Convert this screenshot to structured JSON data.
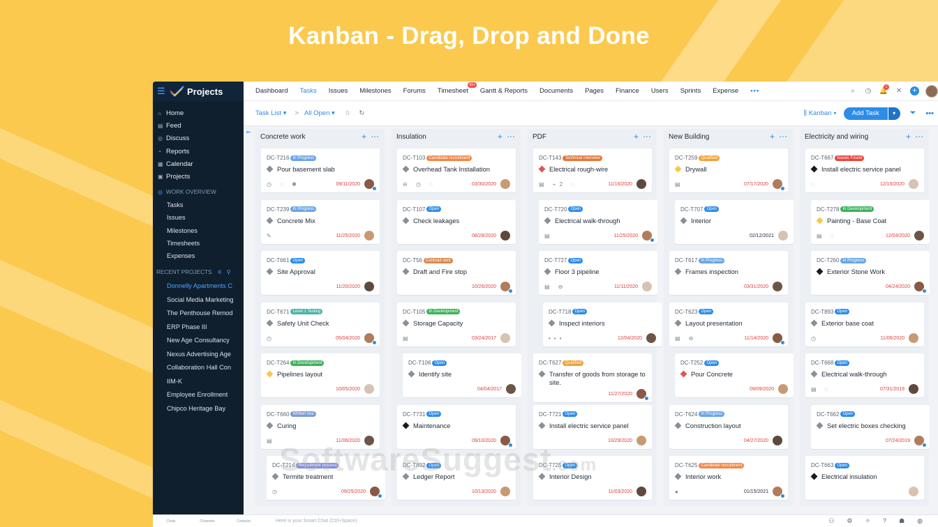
{
  "headline": "Kanban - Drag, Drop and Done",
  "app": {
    "name": "Projects"
  },
  "sidebar": {
    "nav": [
      {
        "label": "Home",
        "icon": "home-icon",
        "glyph": "⌂"
      },
      {
        "label": "Feed",
        "icon": "feed-icon",
        "glyph": "▤"
      },
      {
        "label": "Discuss",
        "icon": "discuss-icon",
        "glyph": "◎"
      },
      {
        "label": "Reports",
        "icon": "reports-icon",
        "glyph": "◔"
      },
      {
        "label": "Calendar",
        "icon": "calendar-icon",
        "glyph": "▦"
      },
      {
        "label": "Projects",
        "icon": "projects-icon",
        "glyph": "▣"
      }
    ],
    "work_overview_title": "WORK OVERVIEW",
    "work_overview": [
      "Tasks",
      "Issues",
      "Milestones",
      "Timesheets",
      "Expenses"
    ],
    "recent_title": "RECENT PROJECTS",
    "recent": [
      "Donnelly Apartments C",
      "Social Media Marketing",
      "The Penthouse Remod",
      "ERP Phase III",
      "New Age Consultancy",
      "Nexus Advertising Age",
      "Collaboration Hall Con",
      "IIM-K",
      "Employee Enrollment",
      "Chipco Heritage Bay"
    ]
  },
  "topbar": {
    "tabs": [
      "Dashboard",
      "Tasks",
      "Issues",
      "Milestones",
      "Forums",
      "Timesheet",
      "Gantt & Reports",
      "Documents",
      "Pages",
      "Finance",
      "Users",
      "Sprints",
      "Expense"
    ],
    "active_tab": "Tasks",
    "timesheet_badge": "99+",
    "more": "•••",
    "notification_count": "1"
  },
  "toolbar": {
    "task_list": "Task List ▾",
    "separator": ">",
    "filter": "All Open ▾",
    "view": "Kanban ▾",
    "add_task": "Add Task"
  },
  "colors": {
    "accent": "#2d8ce8",
    "status": {
      "In Progress": "#6aa6e8",
      "Open": "#2d8ce8",
      "Candidate recruitment": "#f0884a",
      "Technical interview": "#e07a3c",
      "Qualified": "#f0a23a",
      "Issues Found": "#e5473d",
      "In Development": "#3cb35a",
      "Contract sent": "#d98b52",
      "Level 1 Testing": "#4cb3a6",
      "Written test": "#7b9bd8",
      "Recruitment process": "#7d8ce0"
    },
    "priority": {
      "gray": "#8a8f96",
      "red": "#e25555",
      "yellow": "#f4c84c",
      "black": "#1a1a1a"
    }
  },
  "columns": [
    {
      "title": "Concrete work",
      "cards": [
        {
          "id": "DC-T216",
          "status": "In Progress",
          "title": "Pour basement slab",
          "date": "09/11/2020",
          "late": true,
          "priority": "gray",
          "icons": "◷ ◌ ✱"
        },
        {
          "id": "DC-T239",
          "status": "In Progress",
          "title": "Concrete Mix",
          "date": "11/25/2020",
          "late": true,
          "priority": "gray",
          "icons": "✎"
        },
        {
          "id": "DC-T661",
          "status": "Open",
          "title": "Site Approval",
          "date": "11/20/2020",
          "late": true,
          "priority": "gray",
          "icons": ""
        },
        {
          "id": "DC-T671",
          "status": "Level 1 Testing",
          "title": "Safety Unit Check",
          "date": "05/04/2020",
          "late": true,
          "priority": "gray",
          "icons": "◷"
        },
        {
          "id": "DC-T264",
          "status": "In Development",
          "title": "Pipelines layout",
          "date": "10/05/2020",
          "late": true,
          "priority": "yellow",
          "icons": ""
        },
        {
          "id": "DC-T660",
          "status": "Written test",
          "title": "Curing",
          "date": "11/06/2020",
          "late": true,
          "priority": "gray",
          "icons": "▤"
        },
        {
          "id": "DC-T214",
          "status": "Recruitment process",
          "title": "Termite treatment",
          "date": "09/25/2020",
          "late": true,
          "priority": "gray",
          "icons": "◷"
        }
      ]
    },
    {
      "title": "Insulation",
      "cards": [
        {
          "id": "DC-T103",
          "status": "Candidate recruitment",
          "title": "Overhead Tank Installation",
          "date": "03/30/2020",
          "late": true,
          "priority": "gray",
          "icons": "⊖ ◷ ◌"
        },
        {
          "id": "DC-T107",
          "status": "Open",
          "title": "Check leakages",
          "date": "08/28/2020",
          "late": true,
          "priority": "gray",
          "icons": ""
        },
        {
          "id": "DC-T56",
          "status": "Contract sent",
          "title": "Draft and Fire stop",
          "date": "10/26/2020",
          "late": true,
          "priority": "gray",
          "icons": ""
        },
        {
          "id": "DC-T105",
          "status": "In Development",
          "title": "Storage Capacity",
          "date": "03/24/2017",
          "late": true,
          "priority": "gray",
          "icons": "▤"
        },
        {
          "id": "DC-T106",
          "status": "Open",
          "title": "Identify site",
          "date": "04/04/2017",
          "late": true,
          "priority": "gray",
          "icons": ""
        },
        {
          "id": "DC-T731",
          "status": "Open",
          "title": "Maintenance",
          "date": "09/10/2020",
          "late": true,
          "priority": "black",
          "icons": ""
        },
        {
          "id": "DC-T892",
          "status": "Open",
          "title": "Ledger Report",
          "date": "10/13/2020",
          "late": true,
          "priority": "gray",
          "icons": ""
        }
      ]
    },
    {
      "title": "PDF",
      "cards": [
        {
          "id": "DC-T143",
          "status": "Technical interview",
          "title": "Electrical rough-wire",
          "date": "11/16/2020",
          "late": true,
          "priority": "red",
          "icons": "▤ ⌁2 ◌"
        },
        {
          "id": "DC-T720",
          "status": "Open",
          "title": "Electrical walk-through",
          "date": "11/25/2020",
          "late": true,
          "priority": "gray",
          "icons": "▤"
        },
        {
          "id": "DC-T727",
          "status": "Open",
          "title": "Floor 3 pipeline",
          "date": "11/11/2020",
          "late": true,
          "priority": "gray",
          "icons": "▤ ⊖"
        },
        {
          "id": "DC-T718",
          "status": "Open",
          "title": "Inspect interiors",
          "date": "12/04/2020",
          "late": true,
          "priority": "gray",
          "icons": "•••"
        },
        {
          "id": "DC-T627",
          "status": "Qualified",
          "title": "Transfer of goods from storage to site.",
          "date": "11/27/2020",
          "late": true,
          "priority": "gray",
          "icons": ""
        },
        {
          "id": "DC-T721",
          "status": "Open",
          "title": "Install electric service panel",
          "date": "10/29/2020",
          "late": true,
          "priority": "gray",
          "icons": ""
        },
        {
          "id": "DC-T725",
          "status": "Open",
          "title": "Interior Design",
          "date": "11/03/2020",
          "late": true,
          "priority": "gray",
          "icons": ""
        }
      ]
    },
    {
      "title": "New Building",
      "cards": [
        {
          "id": "DC-T259",
          "status": "Qualified",
          "title": "Drywall",
          "date": "07/17/2020",
          "late": true,
          "priority": "yellow",
          "icons": "▤"
        },
        {
          "id": "DC-T707",
          "status": "Open",
          "title": "Interior",
          "date": "02/12/2021",
          "late": false,
          "priority": "gray",
          "icons": ""
        },
        {
          "id": "DC-T617",
          "status": "In Progress",
          "title": "Frames inspection",
          "date": "03/31/2020",
          "late": true,
          "priority": "gray",
          "icons": ""
        },
        {
          "id": "DC-T623",
          "status": "Open",
          "title": "Layout presentation",
          "date": "11/14/2020",
          "late": true,
          "priority": "gray",
          "icons": "▤ ⊖"
        },
        {
          "id": "DC-T252",
          "status": "Open",
          "title": "Pour Concrete",
          "date": "09/09/2020",
          "late": true,
          "priority": "red",
          "icons": ""
        },
        {
          "id": "DC-T624",
          "status": "In Progress",
          "title": "Construction layout",
          "date": "04/27/2020",
          "late": true,
          "priority": "gray",
          "icons": ""
        },
        {
          "id": "DC-T625",
          "status": "Candidate recruitment",
          "title": "Interior work",
          "date": "01/15/2021",
          "late": false,
          "priority": "gray",
          "icons": "●"
        }
      ]
    },
    {
      "title": "Electricity and wiring",
      "cards": [
        {
          "id": "DC-T667",
          "status": "Issues Found",
          "title": "Install electric service panel",
          "date": "12/15/2020",
          "late": true,
          "priority": "black",
          "icons": "◌"
        },
        {
          "id": "DC-T278",
          "status": "In Development",
          "title": "Painting - Base Coat",
          "date": "12/04/2020",
          "late": true,
          "priority": "yellow",
          "icons": "▤ ◌"
        },
        {
          "id": "DC-T260",
          "status": "In Progress",
          "title": "Exterior Stone Work",
          "date": "04/24/2020",
          "late": true,
          "priority": "black",
          "icons": ""
        },
        {
          "id": "DC-T893",
          "status": "Open",
          "title": "Exterior base coat",
          "date": "11/06/2020",
          "late": true,
          "priority": "gray",
          "icons": "◷"
        },
        {
          "id": "DC-T668",
          "status": "Open",
          "title": "Electrical walk-through",
          "date": "07/31/2019",
          "late": true,
          "priority": "gray",
          "icons": "▤ ◌"
        },
        {
          "id": "DC-T662",
          "status": "Open",
          "title": "Set electric boxes checking",
          "date": "07/24/2019",
          "late": true,
          "priority": "gray",
          "icons": ""
        },
        {
          "id": "DC-T663",
          "status": "Open",
          "title": "Electrical insulation",
          "date": "",
          "late": false,
          "priority": "black",
          "icons": ""
        }
      ]
    }
  ],
  "watermark": {
    "main": "SoftwareSuggest",
    "suffix": ".com"
  },
  "bottombar": {
    "items": [
      "Chats",
      "Channels",
      "Contacts"
    ],
    "chat_placeholder": "Here is your Smart Chat (Ctrl+Space)"
  }
}
